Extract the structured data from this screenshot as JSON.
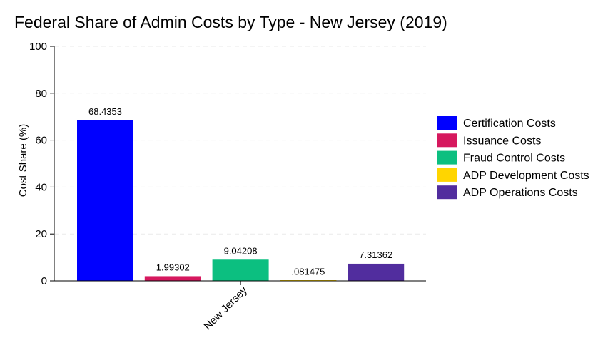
{
  "chart_data": {
    "type": "bar",
    "title": "Federal Share of Admin Costs by Type - New Jersey (2019)",
    "xlabel": "",
    "ylabel": "Cost Share (%)",
    "ylim": [
      0,
      100
    ],
    "yticks": [
      0,
      20,
      40,
      60,
      80,
      100
    ],
    "categories": [
      "New Jersey"
    ],
    "grid": true,
    "legend_position": "right",
    "series": [
      {
        "name": "Certification Costs",
        "values": [
          68.4353
        ],
        "label": "68.4353",
        "color": "#0000ff"
      },
      {
        "name": "Issuance Costs",
        "values": [
          1.99302
        ],
        "label": "1.99302",
        "color": "#d6185e"
      },
      {
        "name": "Fraud Control Costs",
        "values": [
          9.04208
        ],
        "label": "9.04208",
        "color": "#0cbf80"
      },
      {
        "name": "ADP Development Costs",
        "values": [
          0.081475
        ],
        "label": ".081475",
        "color": "#ffd500"
      },
      {
        "name": "ADP Operations Costs",
        "values": [
          7.31362
        ],
        "label": "7.31362",
        "color": "#512d9e"
      }
    ]
  }
}
